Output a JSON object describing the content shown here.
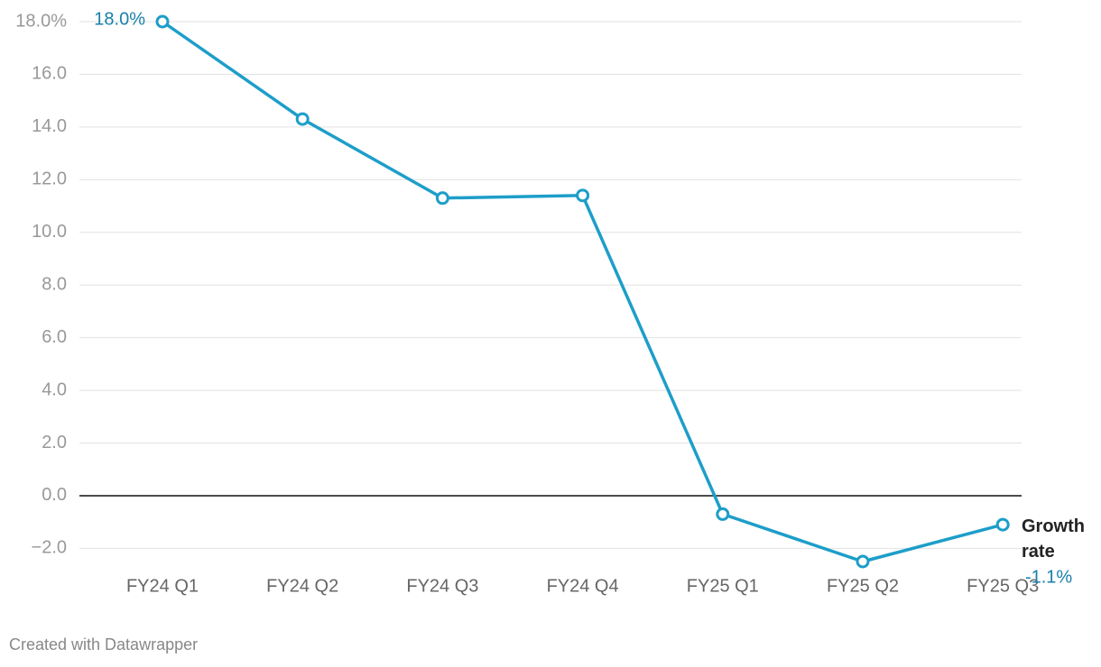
{
  "chart_data": {
    "type": "line",
    "categories": [
      "FY24 Q1",
      "FY24 Q2",
      "FY24 Q3",
      "FY24 Q4",
      "FY25 Q1",
      "FY25 Q2",
      "FY25 Q3"
    ],
    "series": [
      {
        "name": "Growth rate",
        "color": "#1d9ec9",
        "values": [
          18.0,
          14.3,
          11.3,
          11.4,
          -0.7,
          -2.5,
          -1.1
        ],
        "value_labels": [
          "18.0%",
          null,
          null,
          null,
          null,
          null,
          "-1.1%"
        ]
      }
    ],
    "ylim": [
      -2.5,
      18
    ],
    "yticks": [
      {
        "value": 18,
        "label": "18.0%"
      },
      {
        "value": 16,
        "label": "16.0"
      },
      {
        "value": 14,
        "label": "14.0"
      },
      {
        "value": 12,
        "label": "12.0"
      },
      {
        "value": 10,
        "label": "10.0"
      },
      {
        "value": 8,
        "label": "8.0"
      },
      {
        "value": 6,
        "label": "6.0"
      },
      {
        "value": 4,
        "label": "4.0"
      },
      {
        "value": 2,
        "label": "2.0"
      },
      {
        "value": 0,
        "label": "0.0"
      },
      {
        "value": -2,
        "label": "−2.0"
      }
    ],
    "grid": true,
    "footer": "Created with Datawrapper"
  }
}
